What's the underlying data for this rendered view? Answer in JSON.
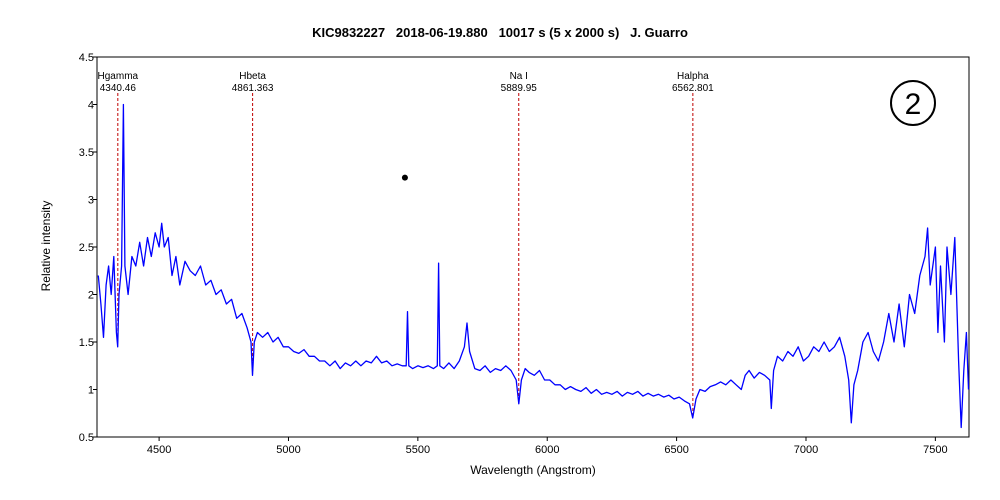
{
  "chart_data": {
    "type": "line",
    "title": "KIC9832227   2018-06-19.880   10017 s (5 x 2000 s)   J. Guarro",
    "xlabel": "Wavelength (Angstrom)",
    "ylabel": "Relative intensity",
    "xlim": [
      4260,
      7630
    ],
    "ylim": [
      0.5,
      4.5
    ],
    "xticks": [
      4500,
      5000,
      5500,
      6000,
      6500,
      7000,
      7500
    ],
    "yticks": [
      0.5,
      1,
      1.5,
      2,
      2.5,
      3,
      3.5,
      4,
      4.5
    ],
    "color": "#0000ff",
    "line_color": "#c00000",
    "lines": [
      {
        "name": "Hgamma",
        "wavelength": 4340.46
      },
      {
        "name": "Hbeta",
        "wavelength": 4861.363
      },
      {
        "name": "Na I",
        "wavelength": 5889.95
      },
      {
        "name": "Halpha",
        "wavelength": 6562.801
      }
    ],
    "marker": {
      "x": 5450,
      "y": 3.23
    },
    "annotation": "2",
    "x": [
      4265,
      4275,
      4285,
      4295,
      4305,
      4315,
      4325,
      4335,
      4340,
      4345,
      4355,
      4362,
      4368,
      4380,
      4395,
      4410,
      4425,
      4440,
      4455,
      4470,
      4485,
      4500,
      4510,
      4520,
      4535,
      4550,
      4565,
      4580,
      4600,
      4620,
      4640,
      4660,
      4680,
      4700,
      4720,
      4740,
      4760,
      4780,
      4800,
      4820,
      4840,
      4855,
      4861,
      4868,
      4880,
      4900,
      4920,
      4940,
      4960,
      4980,
      5000,
      5020,
      5040,
      5060,
      5080,
      5100,
      5120,
      5140,
      5160,
      5180,
      5200,
      5220,
      5240,
      5260,
      5280,
      5300,
      5320,
      5340,
      5360,
      5380,
      5400,
      5420,
      5440,
      5455,
      5460,
      5465,
      5480,
      5500,
      5520,
      5540,
      5560,
      5575,
      5580,
      5585,
      5600,
      5620,
      5640,
      5660,
      5680,
      5690,
      5700,
      5720,
      5740,
      5760,
      5780,
      5800,
      5820,
      5840,
      5860,
      5880,
      5890,
      5900,
      5915,
      5930,
      5950,
      5970,
      5990,
      6010,
      6030,
      6050,
      6070,
      6090,
      6110,
      6130,
      6150,
      6170,
      6190,
      6210,
      6230,
      6250,
      6270,
      6290,
      6310,
      6330,
      6350,
      6370,
      6390,
      6410,
      6430,
      6450,
      6470,
      6490,
      6510,
      6530,
      6550,
      6562,
      6575,
      6590,
      6610,
      6630,
      6650,
      6670,
      6690,
      6710,
      6730,
      6750,
      6765,
      6780,
      6800,
      6820,
      6840,
      6860,
      6866,
      6875,
      6890,
      6910,
      6930,
      6950,
      6970,
      6990,
      7010,
      7030,
      7050,
      7070,
      7090,
      7110,
      7130,
      7150,
      7165,
      7175,
      7185,
      7200,
      7220,
      7240,
      7260,
      7280,
      7300,
      7320,
      7340,
      7360,
      7380,
      7400,
      7420,
      7440,
      7460,
      7470,
      7480,
      7500,
      7510,
      7520,
      7535,
      7545,
      7560,
      7575,
      7590,
      7600,
      7610,
      7620,
      7628
    ],
    "values": [
      2.2,
      1.9,
      1.55,
      2.1,
      2.3,
      2.0,
      2.4,
      1.6,
      1.45,
      2.0,
      2.3,
      4.0,
      2.3,
      2.0,
      2.4,
      2.3,
      2.55,
      2.3,
      2.6,
      2.4,
      2.65,
      2.5,
      2.75,
      2.5,
      2.6,
      2.2,
      2.4,
      2.1,
      2.35,
      2.25,
      2.2,
      2.3,
      2.1,
      2.15,
      2.0,
      2.05,
      1.9,
      1.95,
      1.75,
      1.8,
      1.65,
      1.5,
      1.15,
      1.5,
      1.6,
      1.55,
      1.6,
      1.5,
      1.55,
      1.45,
      1.45,
      1.4,
      1.38,
      1.42,
      1.35,
      1.35,
      1.3,
      1.3,
      1.25,
      1.3,
      1.22,
      1.28,
      1.25,
      1.3,
      1.25,
      1.3,
      1.28,
      1.35,
      1.28,
      1.3,
      1.25,
      1.27,
      1.25,
      1.25,
      1.82,
      1.25,
      1.22,
      1.25,
      1.23,
      1.25,
      1.22,
      1.25,
      2.33,
      1.25,
      1.22,
      1.28,
      1.22,
      1.3,
      1.45,
      1.7,
      1.4,
      1.22,
      1.2,
      1.25,
      1.18,
      1.22,
      1.2,
      1.25,
      1.2,
      1.1,
      0.85,
      1.1,
      1.22,
      1.18,
      1.15,
      1.2,
      1.1,
      1.1,
      1.05,
      1.05,
      1.0,
      1.03,
      1.0,
      0.98,
      1.02,
      0.96,
      1.0,
      0.95,
      0.97,
      0.95,
      0.98,
      0.93,
      0.97,
      0.95,
      0.98,
      0.93,
      0.96,
      0.93,
      0.95,
      0.92,
      0.94,
      0.9,
      0.92,
      0.88,
      0.85,
      0.7,
      0.9,
      1.0,
      0.98,
      1.03,
      1.05,
      1.08,
      1.05,
      1.1,
      1.05,
      1.0,
      1.15,
      1.2,
      1.12,
      1.18,
      1.15,
      1.1,
      0.8,
      1.2,
      1.35,
      1.3,
      1.4,
      1.35,
      1.45,
      1.3,
      1.35,
      1.45,
      1.4,
      1.5,
      1.4,
      1.45,
      1.55,
      1.35,
      1.1,
      0.65,
      1.05,
      1.2,
      1.5,
      1.6,
      1.4,
      1.3,
      1.5,
      1.8,
      1.5,
      1.9,
      1.45,
      2.0,
      1.8,
      2.2,
      2.4,
      2.7,
      2.1,
      2.5,
      1.6,
      2.3,
      1.5,
      2.5,
      2.0,
      2.6,
      1.3,
      0.6,
      1.2,
      1.6,
      1.0
    ]
  }
}
